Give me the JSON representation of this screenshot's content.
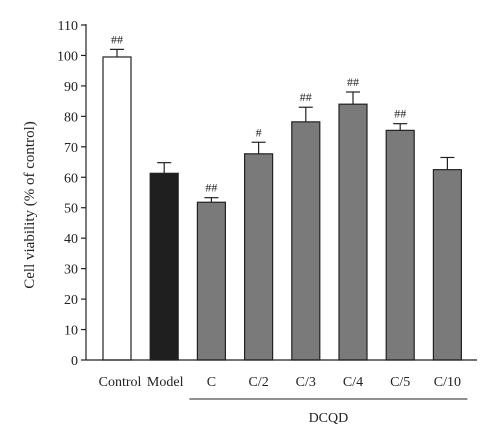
{
  "chart_data": {
    "type": "bar",
    "title": "",
    "xlabel": "",
    "ylabel": "Cell viability (% of control)",
    "ylim": [
      0,
      110
    ],
    "yticks": [
      0,
      10,
      20,
      30,
      40,
      50,
      60,
      70,
      80,
      90,
      100,
      110
    ],
    "grid": false,
    "categories": [
      "Control",
      "Model",
      "C",
      "C/2",
      "C/3",
      "C/4",
      "C/5",
      "C/10"
    ],
    "values": [
      99.5,
      61.3,
      51.8,
      67.7,
      78.2,
      84.0,
      75.4,
      62.5
    ],
    "errors": [
      2.5,
      3.5,
      1.5,
      3.8,
      4.8,
      4.0,
      2.2,
      4.0
    ],
    "significance": [
      "##",
      "",
      "##",
      "#",
      "##",
      "##",
      "##",
      ""
    ],
    "bar_colors": [
      "#ffffff",
      "#1f1f1f",
      "#7a7a7a",
      "#7a7a7a",
      "#7a7a7a",
      "#7a7a7a",
      "#7a7a7a",
      "#7a7a7a"
    ],
    "group_label": {
      "text": "DCQD",
      "from_index": 2,
      "to_index": 7
    }
  }
}
